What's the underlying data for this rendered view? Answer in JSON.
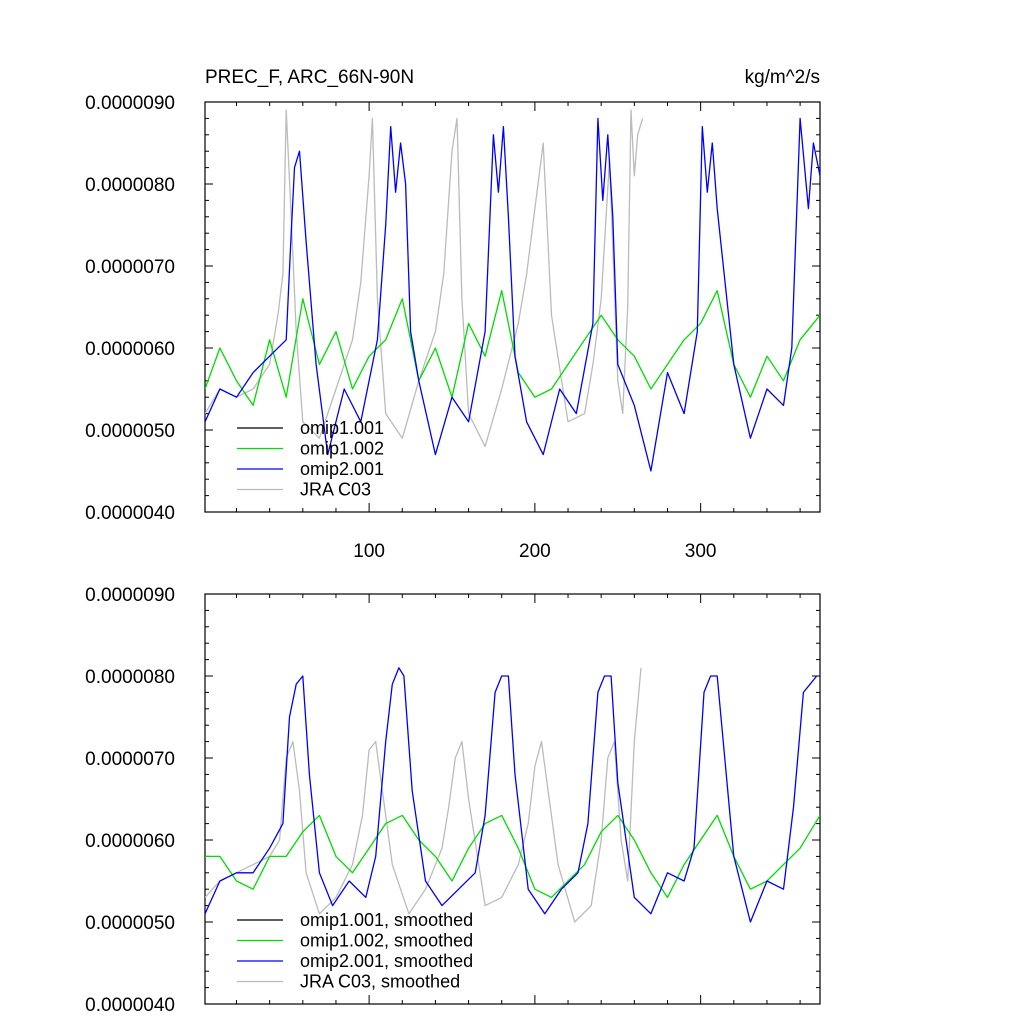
{
  "header": {
    "title": "PREC_F, ARC_66N-90N",
    "units": "kg/m^2/s"
  },
  "colors": {
    "omip1_001": "#000000",
    "omip1_002": "#00dd00",
    "omip2_001": "#0000ff",
    "jra_c03": "#bbbbbb"
  },
  "chart_data": [
    {
      "type": "line",
      "panel": "top",
      "title": "PREC_F, ARC_66N-90N",
      "units": "kg/m^2/s",
      "ylim": [
        4e-06,
        9e-06
      ],
      "xlim": [
        1,
        372
      ],
      "y_ticks": [
        4e-06,
        5e-06,
        6e-06,
        7e-06,
        8e-06,
        9e-06
      ],
      "y_tick_labels": [
        "0.0000040",
        "0.0000050",
        "0.0000060",
        "0.0000070",
        "0.0000080",
        "0.0000090"
      ],
      "x_ticks": [
        100,
        200,
        300
      ],
      "x_tick_labels": [
        "100",
        "200",
        "300"
      ],
      "legend": {
        "placement": "bottom-left",
        "entries": [
          "omip1.001",
          "omip1.002",
          "omip2.001",
          "JRA C03"
        ]
      },
      "series": [
        {
          "name": "omip1.001",
          "color": "#000000",
          "x": [
            1,
            372
          ],
          "values": [
            null,
            null
          ]
        },
        {
          "name": "omip1.002",
          "color": "#00dd00",
          "x": [
            1,
            10,
            20,
            30,
            40,
            50,
            60,
            70,
            80,
            90,
            100,
            110,
            120,
            130,
            140,
            150,
            160,
            170,
            180,
            190,
            200,
            210,
            220,
            230,
            240,
            250,
            260,
            270,
            280,
            290,
            300,
            310,
            320,
            330,
            340,
            350,
            360,
            372
          ],
          "values": [
            5.5e-06,
            6e-06,
            5.6e-06,
            5.3e-06,
            6.1e-06,
            5.4e-06,
            6.6e-06,
            5.8e-06,
            6.2e-06,
            5.5e-06,
            5.9e-06,
            6.1e-06,
            6.6e-06,
            5.6e-06,
            6e-06,
            5.4e-06,
            6.3e-06,
            5.9e-06,
            6.7e-06,
            5.7e-06,
            5.4e-06,
            5.5e-06,
            5.8e-06,
            6.1e-06,
            6.4e-06,
            6.1e-06,
            5.9e-06,
            5.5e-06,
            5.8e-06,
            6.1e-06,
            6.3e-06,
            6.7e-06,
            5.8e-06,
            5.4e-06,
            5.9e-06,
            5.6e-06,
            6.1e-06,
            6.4e-06
          ]
        },
        {
          "name": "omip2.001",
          "color": "#0000ff",
          "x": [
            1,
            10,
            20,
            30,
            40,
            50,
            53,
            55,
            58,
            62,
            68,
            75,
            85,
            95,
            105,
            110,
            113,
            116,
            119,
            122,
            125,
            130,
            140,
            150,
            160,
            170,
            175,
            178,
            181,
            184,
            188,
            195,
            205,
            215,
            225,
            235,
            238,
            241,
            244,
            247,
            250,
            260,
            270,
            280,
            290,
            298,
            301,
            304,
            307,
            310,
            320,
            330,
            340,
            350,
            355,
            360,
            365,
            368,
            372
          ],
          "values": [
            5.1e-06,
            5.5e-06,
            5.4e-06,
            5.7e-06,
            5.9e-06,
            6.1e-06,
            7.4e-06,
            8.2e-06,
            8.4e-06,
            7.3e-06,
            5.8e-06,
            4.7e-06,
            5.5e-06,
            5.1e-06,
            6.1e-06,
            7.5e-06,
            8.7e-06,
            7.9e-06,
            8.5e-06,
            8e-06,
            6.2e-06,
            5.6e-06,
            4.7e-06,
            5.4e-06,
            5.1e-06,
            6.2e-06,
            8.6e-06,
            7.9e-06,
            8.7e-06,
            7.6e-06,
            5.9e-06,
            5.1e-06,
            4.7e-06,
            5.5e-06,
            5.2e-06,
            6.3e-06,
            8.8e-06,
            7.8e-06,
            8.6e-06,
            7.6e-06,
            5.8e-06,
            5.3e-06,
            4.5e-06,
            5.7e-06,
            5.2e-06,
            6.2e-06,
            8.7e-06,
            7.9e-06,
            8.5e-06,
            7.7e-06,
            5.8e-06,
            4.9e-06,
            5.5e-06,
            5.3e-06,
            6e-06,
            8.8e-06,
            7.7e-06,
            8.5e-06,
            8.1e-06
          ]
        },
        {
          "name": "JRA C03",
          "color": "#bbbbbb",
          "x": [
            1,
            10,
            20,
            30,
            40,
            45,
            48,
            50,
            53,
            56,
            60,
            70,
            80,
            90,
            95,
            100,
            102,
            105,
            110,
            120,
            130,
            140,
            145,
            150,
            153,
            156,
            160,
            170,
            180,
            190,
            195,
            200,
            205,
            210,
            220,
            230,
            235,
            240,
            245,
            250,
            253,
            256,
            258,
            260,
            262,
            265
          ],
          "values": [
            5.2e-06,
            5.5e-06,
            5.4e-06,
            5.5e-06,
            5.8e-06,
            6.4e-06,
            6.9e-06,
            8.9e-06,
            7.6e-06,
            6.2e-06,
            5.1e-06,
            4.9e-06,
            5.5e-06,
            6.1e-06,
            6.8e-06,
            8.1e-06,
            8.8e-06,
            6.6e-06,
            5.2e-06,
            4.9e-06,
            5.6e-06,
            6.2e-06,
            6.9e-06,
            8.4e-06,
            8.8e-06,
            6.6e-06,
            5.2e-06,
            4.8e-06,
            5.5e-06,
            6.3e-06,
            6.9e-06,
            7.7e-06,
            8.5e-06,
            6.4e-06,
            5.1e-06,
            5.2e-06,
            5.8e-06,
            6.6e-06,
            8.3e-06,
            5.6e-06,
            5.2e-06,
            6.5e-06,
            8.9e-06,
            8.1e-06,
            8.6e-06,
            8.8e-06
          ]
        }
      ]
    },
    {
      "type": "line",
      "panel": "bottom",
      "ylim": [
        4e-06,
        9e-06
      ],
      "xlim": [
        1,
        372
      ],
      "y_ticks": [
        4e-06,
        5e-06,
        6e-06,
        7e-06,
        8e-06,
        9e-06
      ],
      "y_tick_labels": [
        "0.0000040",
        "0.0000050",
        "0.0000060",
        "0.0000070",
        "0.0000080",
        "0.0000090"
      ],
      "x_ticks": [
        100,
        200,
        300
      ],
      "legend": {
        "placement": "bottom-left",
        "entries": [
          "omip1.001, smoothed",
          "omip1.002, smoothed",
          "omip2.001, smoothed",
          "JRA C03, smoothed"
        ]
      },
      "series": [
        {
          "name": "omip1.001, smoothed",
          "color": "#000000",
          "x": [
            1,
            372
          ],
          "values": [
            null,
            null
          ]
        },
        {
          "name": "omip1.002, smoothed",
          "color": "#00dd00",
          "x": [
            1,
            10,
            20,
            30,
            40,
            50,
            60,
            70,
            80,
            90,
            100,
            110,
            120,
            130,
            140,
            150,
            160,
            170,
            180,
            190,
            200,
            210,
            220,
            230,
            240,
            250,
            260,
            270,
            280,
            290,
            300,
            310,
            320,
            330,
            340,
            350,
            360,
            372
          ],
          "values": [
            5.8e-06,
            5.8e-06,
            5.5e-06,
            5.4e-06,
            5.8e-06,
            5.8e-06,
            6.1e-06,
            6.3e-06,
            5.8e-06,
            5.6e-06,
            5.9e-06,
            6.2e-06,
            6.3e-06,
            6e-06,
            5.8e-06,
            5.5e-06,
            5.9e-06,
            6.2e-06,
            6.3e-06,
            5.9e-06,
            5.4e-06,
            5.3e-06,
            5.5e-06,
            5.7e-06,
            6.1e-06,
            6.3e-06,
            6e-06,
            5.6e-06,
            5.3e-06,
            5.7e-06,
            6e-06,
            6.3e-06,
            5.8e-06,
            5.4e-06,
            5.5e-06,
            5.7e-06,
            5.9e-06,
            6.3e-06
          ]
        },
        {
          "name": "omip2.001, smoothed",
          "color": "#0000ff",
          "x": [
            1,
            10,
            20,
            30,
            40,
            48,
            52,
            56,
            60,
            64,
            70,
            78,
            88,
            98,
            104,
            110,
            114,
            118,
            121,
            126,
            134,
            144,
            154,
            164,
            170,
            176,
            180,
            184,
            188,
            196,
            206,
            216,
            226,
            232,
            238,
            242,
            246,
            250,
            260,
            270,
            280,
            290,
            296,
            302,
            306,
            310,
            320,
            330,
            340,
            350,
            356,
            362,
            366,
            370
          ],
          "values": [
            5.1e-06,
            5.5e-06,
            5.6e-06,
            5.6e-06,
            5.9e-06,
            6.2e-06,
            7.5e-06,
            7.9e-06,
            8e-06,
            6.8e-06,
            5.6e-06,
            5.2e-06,
            5.5e-06,
            5.3e-06,
            5.8e-06,
            7.2e-06,
            7.9e-06,
            8.1e-06,
            8e-06,
            6.6e-06,
            5.5e-06,
            5.2e-06,
            5.4e-06,
            5.6e-06,
            6.3e-06,
            7.8e-06,
            8e-06,
            8e-06,
            6.8e-06,
            5.4e-06,
            5.1e-06,
            5.4e-06,
            5.6e-06,
            6.2e-06,
            7.8e-06,
            8e-06,
            8e-06,
            6.7e-06,
            5.3e-06,
            5.1e-06,
            5.6e-06,
            5.5e-06,
            5.9e-06,
            7.8e-06,
            8e-06,
            8e-06,
            5.8e-06,
            5e-06,
            5.5e-06,
            5.4e-06,
            6.4e-06,
            7.8e-06,
            7.9e-06,
            8e-06
          ]
        },
        {
          "name": "JRA C03, smoothed",
          "color": "#bbbbbb",
          "x": [
            1,
            10,
            20,
            30,
            40,
            46,
            50,
            54,
            58,
            62,
            70,
            80,
            90,
            96,
            100,
            104,
            108,
            114,
            124,
            134,
            144,
            148,
            152,
            156,
            160,
            170,
            180,
            190,
            196,
            200,
            204,
            208,
            214,
            224,
            234,
            240,
            244,
            248,
            252,
            256,
            260,
            264
          ],
          "values": [
            5.3e-06,
            5.5e-06,
            5.6e-06,
            5.7e-06,
            5.8e-06,
            6e-06,
            7e-06,
            7.2e-06,
            6.6e-06,
            5.6e-06,
            5.1e-06,
            5.3e-06,
            5.7e-06,
            6.3e-06,
            7.1e-06,
            7.2e-06,
            6.6e-06,
            5.7e-06,
            5.1e-06,
            5.4e-06,
            5.9e-06,
            6.4e-06,
            7e-06,
            7.2e-06,
            6.5e-06,
            5.2e-06,
            5.3e-06,
            5.7e-06,
            6.2e-06,
            6.9e-06,
            7.2e-06,
            6.6e-06,
            5.7e-06,
            5e-06,
            5.2e-06,
            6e-06,
            7e-06,
            7.2e-06,
            6e-06,
            5.5e-06,
            7.2e-06,
            8.1e-06
          ]
        }
      ]
    }
  ]
}
